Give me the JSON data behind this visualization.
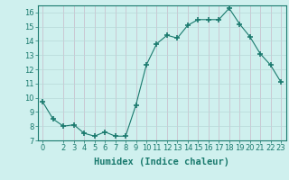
{
  "x": [
    0,
    1,
    2,
    3,
    4,
    5,
    6,
    7,
    8,
    9,
    10,
    11,
    12,
    13,
    14,
    15,
    16,
    17,
    18,
    19,
    20,
    21,
    22,
    23
  ],
  "y": [
    9.7,
    8.5,
    8.0,
    8.1,
    7.5,
    7.3,
    7.6,
    7.3,
    7.3,
    9.5,
    12.3,
    13.8,
    14.4,
    14.2,
    15.1,
    15.5,
    15.5,
    15.5,
    16.3,
    15.2,
    14.3,
    13.1,
    12.3,
    11.1
  ],
  "line_color": "#1a7a6e",
  "marker": "+",
  "marker_size": 5,
  "bg_color": "#cff0ee",
  "grid_color_v": "#c8b8c8",
  "grid_color_h": "#b8d8d8",
  "xlabel": "Humidex (Indice chaleur)",
  "ylim": [
    7,
    16.5
  ],
  "xlim": [
    -0.5,
    23.5
  ],
  "yticks": [
    7,
    8,
    9,
    10,
    11,
    12,
    13,
    14,
    15,
    16
  ],
  "xticks": [
    0,
    2,
    3,
    4,
    5,
    6,
    7,
    8,
    9,
    10,
    11,
    12,
    13,
    14,
    15,
    16,
    17,
    18,
    19,
    20,
    21,
    22,
    23
  ],
  "axis_fontsize": 7,
  "tick_fontsize": 6,
  "label_fontsize": 7.5
}
